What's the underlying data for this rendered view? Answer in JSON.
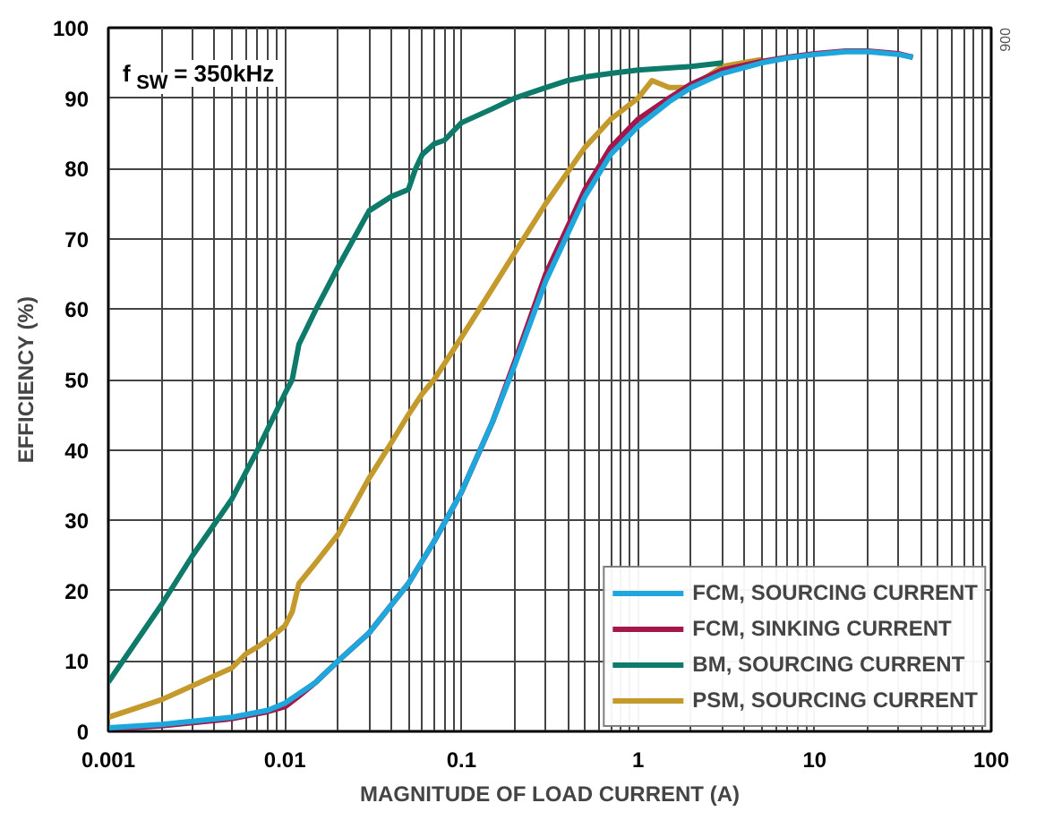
{
  "chart_data": {
    "type": "line",
    "xlabel": "MAGNITUDE OF LOAD CURRENT (A)",
    "ylabel": "EFFICIENCY (%)",
    "log": "x",
    "xlim": [
      0.001,
      100
    ],
    "ylim": [
      0,
      100
    ],
    "xticks": [
      0.001,
      0.01,
      0.1,
      1,
      10,
      100
    ],
    "yticks": [
      0,
      10,
      20,
      30,
      40,
      50,
      60,
      70,
      80,
      90,
      100
    ],
    "grid": true,
    "legend": "bottom right",
    "line_style": "solid",
    "marker": "none",
    "annotations": [
      "f$_{SW}$ = 350kHz",
      "006"
    ],
    "series": [
      {
        "name": "FCM, SOURCING CURRENT",
        "color": "#1ea7dc",
        "x": [
          0.001,
          0.002,
          0.005,
          0.008,
          0.01,
          0.015,
          0.02,
          0.03,
          0.05,
          0.07,
          0.1,
          0.15,
          0.2,
          0.3,
          0.5,
          0.7,
          1,
          1.5,
          2,
          3,
          5,
          7,
          10,
          15,
          20,
          30,
          36
        ],
        "values": [
          0.5,
          1,
          2,
          3,
          4,
          7,
          10,
          14,
          21,
          27,
          34,
          44,
          52,
          64,
          76,
          82,
          86,
          89.5,
          91.5,
          93.5,
          95,
          95.7,
          96.2,
          96.6,
          96.6,
          96.2,
          95.8
        ]
      },
      {
        "name": "FCM, SINKING CURRENT",
        "color": "#a3174a",
        "x": [
          0.001,
          0.002,
          0.005,
          0.008,
          0.01,
          0.012,
          0.015,
          0.02,
          0.03,
          0.05,
          0.07,
          0.1,
          0.15,
          0.2,
          0.3,
          0.5,
          0.7,
          1,
          1.5,
          2,
          3,
          5,
          7,
          10,
          15,
          20,
          30,
          36
        ],
        "values": [
          0.3,
          0.8,
          1.8,
          2.8,
          3.5,
          5,
          7,
          10,
          14,
          21,
          27,
          34,
          44,
          52.5,
          65,
          77,
          83,
          87,
          90,
          92,
          94,
          95.2,
          95.8,
          96.3,
          96.7,
          96.7,
          96.3,
          95.8
        ]
      },
      {
        "name": "BM, SOURCING CURRENT",
        "color": "#0d7a6a",
        "x": [
          0.001,
          0.002,
          0.003,
          0.005,
          0.007,
          0.008,
          0.01,
          0.011,
          0.012,
          0.015,
          0.02,
          0.03,
          0.04,
          0.05,
          0.055,
          0.06,
          0.07,
          0.08,
          0.1,
          0.15,
          0.2,
          0.3,
          0.4,
          0.5,
          0.7,
          1,
          2,
          3
        ],
        "values": [
          7,
          18,
          25,
          33,
          40,
          43,
          48,
          50,
          55,
          60,
          66,
          74,
          76,
          77,
          80,
          82,
          83.5,
          84,
          86.5,
          88.5,
          90,
          91.5,
          92.5,
          93,
          93.5,
          94,
          94.5,
          95
        ]
      },
      {
        "name": "PSM, SOURCING CURRENT",
        "color": "#c49a2c",
        "x": [
          0.001,
          0.002,
          0.003,
          0.005,
          0.006,
          0.007,
          0.008,
          0.01,
          0.011,
          0.012,
          0.015,
          0.02,
          0.03,
          0.04,
          0.05,
          0.06,
          0.07,
          0.1,
          0.15,
          0.2,
          0.3,
          0.5,
          0.7,
          1,
          1.2,
          1.5,
          2,
          3,
          5
        ],
        "values": [
          2,
          4.5,
          6.5,
          9,
          11,
          12,
          13,
          15,
          17,
          21,
          24,
          28,
          36,
          41,
          45,
          48,
          50,
          56,
          63,
          68,
          75,
          83,
          87,
          90,
          92.5,
          91.5,
          91.5,
          94.5,
          95.5
        ]
      }
    ]
  }
}
